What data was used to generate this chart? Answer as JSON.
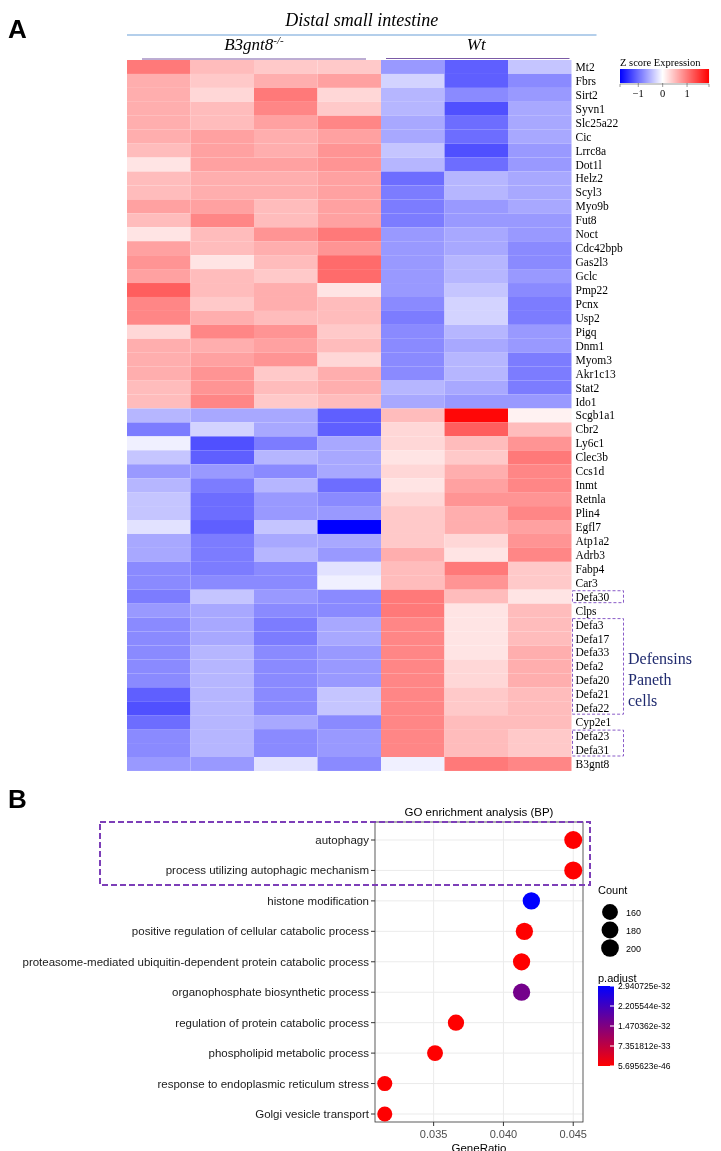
{
  "chart_data": [
    {
      "type": "heatmap",
      "title": "Distal small intestine",
      "clabel": "Z score Expression",
      "annotations": [
        "A",
        "B3gnt8$^{-/-}$",
        "Wt",
        "Defensins Paneth cells"
      ],
      "categories": [
        null,
        null,
        null,
        null,
        null,
        null,
        null
      ],
      "y_categories": [
        "Mt2",
        "Fbrs",
        "Sirt2",
        "Syvn1",
        "Slc25a22",
        "Cic",
        "Lrrc8a",
        "Dot1l",
        "Helz2",
        "Scyl3",
        "Myo9b",
        "Fut8",
        "Noct",
        "Cdc42bpb",
        "Gas2l3",
        "Gclc",
        "Pmp22",
        "Pcnx",
        "Usp2",
        "Pigq",
        "Dnm1",
        "Myom3",
        "Akr1c13",
        "Stat2",
        "Ido1",
        "Scgb1a1",
        "Cbr2",
        "Ly6c1",
        "Clec3b",
        "Ccs1d",
        "Inmt",
        "Retnla",
        "Plin4",
        "Egfl7",
        "Atp1a2",
        "Adrb3",
        "Fabp4",
        "Car3",
        "Defa30",
        "Clps",
        "Defa3",
        "Defa17",
        "Defa33",
        "Defa2",
        "Defa20",
        "Defa21",
        "Defa22",
        "Cyp2e1",
        "Defa23",
        "Defa31",
        "B3gnt8"
      ],
      "cells": [
        [
          1.0,
          0.5,
          0.4,
          0.4,
          -0.7,
          -1.1,
          -0.4
        ],
        [
          0.6,
          0.4,
          0.6,
          0.7,
          -0.3,
          -1.1,
          -0.8
        ],
        [
          0.6,
          0.3,
          1.0,
          0.3,
          -0.5,
          -0.8,
          -0.7
        ],
        [
          0.6,
          0.5,
          0.9,
          0.4,
          -0.5,
          -1.2,
          -0.6
        ],
        [
          0.6,
          0.5,
          0.7,
          0.9,
          -0.6,
          -1.0,
          -0.6
        ],
        [
          0.6,
          0.7,
          0.6,
          0.7,
          -0.6,
          -1.0,
          -0.6
        ],
        [
          0.5,
          0.7,
          0.6,
          0.8,
          -0.4,
          -1.2,
          -0.7
        ],
        [
          0.2,
          0.7,
          0.7,
          0.8,
          -0.5,
          -1.0,
          -0.7
        ],
        [
          0.5,
          0.6,
          0.6,
          0.7,
          -1.0,
          -0.5,
          -0.6
        ],
        [
          0.5,
          0.6,
          0.6,
          0.7,
          -0.9,
          -0.5,
          -0.6
        ],
        [
          0.7,
          0.7,
          0.5,
          0.7,
          -0.9,
          -0.7,
          -0.6
        ],
        [
          0.5,
          0.9,
          0.5,
          0.7,
          -0.9,
          -0.7,
          -0.7
        ],
        [
          0.2,
          0.5,
          0.8,
          1.0,
          -0.7,
          -0.6,
          -0.7
        ],
        [
          0.7,
          0.5,
          0.6,
          0.8,
          -0.7,
          -0.6,
          -0.8
        ],
        [
          0.8,
          0.2,
          0.5,
          1.1,
          -0.7,
          -0.5,
          -0.8
        ],
        [
          0.7,
          0.5,
          0.4,
          1.1,
          -0.7,
          -0.5,
          -0.7
        ],
        [
          1.2,
          0.5,
          0.6,
          0.2,
          -0.7,
          -0.4,
          -0.8
        ],
        [
          0.9,
          0.4,
          0.6,
          0.5,
          -0.8,
          -0.3,
          -0.9
        ],
        [
          0.9,
          0.6,
          0.5,
          0.5,
          -0.9,
          -0.3,
          -0.9
        ],
        [
          0.3,
          0.9,
          0.8,
          0.4,
          -0.8,
          -0.5,
          -0.7
        ],
        [
          0.6,
          0.6,
          0.7,
          0.5,
          -0.8,
          -0.6,
          -0.7
        ],
        [
          0.6,
          0.7,
          0.8,
          0.3,
          -0.8,
          -0.5,
          -0.9
        ],
        [
          0.6,
          0.8,
          0.4,
          0.6,
          -0.8,
          -0.5,
          -0.9
        ],
        [
          0.5,
          0.8,
          0.5,
          0.6,
          -0.5,
          -0.6,
          -0.9
        ],
        [
          0.5,
          0.9,
          0.4,
          0.5,
          -0.6,
          -0.7,
          -0.7
        ],
        [
          -0.5,
          -0.6,
          -0.6,
          -1.1,
          0.5,
          1.85,
          0.1
        ],
        [
          -0.9,
          -0.3,
          -0.6,
          -1.1,
          0.3,
          1.2,
          0.5
        ],
        [
          -0.1,
          -1.2,
          -0.9,
          -0.6,
          0.3,
          0.5,
          0.8
        ],
        [
          -0.4,
          -1.1,
          -0.5,
          -0.6,
          0.2,
          0.4,
          1.0
        ],
        [
          -0.7,
          -0.7,
          -0.8,
          -0.6,
          0.3,
          0.6,
          0.9
        ],
        [
          -0.5,
          -0.9,
          -0.5,
          -1.0,
          0.2,
          0.7,
          0.9
        ],
        [
          -0.4,
          -1.0,
          -0.7,
          -0.8,
          0.3,
          0.8,
          0.8
        ],
        [
          -0.4,
          -1.0,
          -0.7,
          -0.7,
          0.4,
          0.6,
          0.9
        ],
        [
          -0.2,
          -1.1,
          -0.4,
          -1.75,
          0.4,
          0.6,
          0.7
        ],
        [
          -0.6,
          -0.9,
          -0.6,
          -0.6,
          0.4,
          0.3,
          0.8
        ],
        [
          -0.6,
          -0.9,
          -0.5,
          -0.7,
          0.6,
          0.2,
          0.9
        ],
        [
          -0.8,
          -0.9,
          -0.8,
          -0.2,
          0.5,
          1.0,
          0.4
        ],
        [
          -0.8,
          -0.8,
          -0.8,
          -0.1,
          0.5,
          0.8,
          0.4
        ],
        [
          -0.9,
          -0.4,
          -0.7,
          -0.8,
          1.0,
          0.5,
          0.2
        ],
        [
          -0.7,
          -0.6,
          -0.8,
          -0.8,
          1.0,
          0.2,
          0.5
        ],
        [
          -0.8,
          -0.6,
          -0.9,
          -0.6,
          0.9,
          0.2,
          0.5
        ],
        [
          -0.8,
          -0.6,
          -0.9,
          -0.6,
          0.9,
          0.2,
          0.5
        ],
        [
          -0.8,
          -0.5,
          -0.8,
          -0.7,
          0.9,
          0.2,
          0.6
        ],
        [
          -0.8,
          -0.5,
          -0.8,
          -0.7,
          0.9,
          0.3,
          0.6
        ],
        [
          -0.8,
          -0.5,
          -0.8,
          -0.7,
          0.9,
          0.3,
          0.6
        ],
        [
          -1.1,
          -0.5,
          -0.8,
          -0.4,
          0.9,
          0.4,
          0.5
        ],
        [
          -1.2,
          -0.5,
          -0.8,
          -0.4,
          0.9,
          0.4,
          0.5
        ],
        [
          -1.0,
          -0.5,
          -0.6,
          -0.8,
          0.9,
          0.5,
          0.5
        ],
        [
          -0.8,
          -0.5,
          -0.8,
          -0.7,
          0.9,
          0.5,
          0.4
        ],
        [
          -0.8,
          -0.5,
          -0.8,
          -0.7,
          0.9,
          0.5,
          0.4
        ],
        [
          -0.7,
          -0.7,
          -0.2,
          -0.8,
          -0.1,
          1.0,
          0.9
        ]
      ],
      "clim": [
        -1.75,
        1.9
      ],
      "cticks": [
        {
          "value": -1,
          "label": "−1"
        },
        0,
        1
      ]
    },
    {
      "type": "bubble",
      "orientation": "horizontal",
      "title": "GO enrichment analysis (BP)",
      "xlabel": "GeneRatio",
      "legend_title": "Count",
      "clabel": "p.adjust",
      "annotations": [
        "B"
      ],
      "grid": true,
      "categories": [
        "autophagy",
        "process utilizing autophagic mechanism",
        "histone modification",
        "positive regulation of cellular catabolic process",
        "proteasome-mediated ubiquitin-dependent protein catabolic process",
        "organophosphate biosynthetic process",
        "regulation of protein catabolic process",
        "phospholipid metabolic process",
        "response to endoplasmic reticulum stress",
        "Golgi vesicle transport"
      ],
      "values": [
        0.045,
        0.045,
        0.042,
        0.0415,
        0.0413,
        0.0413,
        0.0366,
        0.0351,
        0.0315,
        0.0315
      ],
      "sizes": [
        206,
        206,
        192,
        190,
        189,
        189,
        168,
        161,
        144,
        144
      ],
      "size_legend": [
        160,
        180,
        200
      ],
      "cvalues": [
        5.695623e-46,
        5.695623e-46,
        2.940725e-32,
        1e-40,
        1e-40,
        1.6e-32,
        1e-36,
        1e-36,
        1e-34,
        1e-34
      ],
      "clim": [
        5.695623e-46,
        2.940725e-32
      ],
      "cticks": [
        {
          "value": 5.695623e-46,
          "label": "5.695623e-46"
        },
        {
          "value": 7.351812e-33,
          "label": "7.351812e-33"
        },
        {
          "value": 1.470362e-32,
          "label": "1.470362e-32"
        },
        {
          "value": 2.205544e-32,
          "label": "2.205544e-32"
        },
        {
          "value": 2.940725e-32,
          "label": "2.940725e-32"
        }
      ],
      "xlim": [
        0.0308,
        0.0457
      ],
      "xticks": [
        0.035,
        {
          "value": 0.04,
          "label": "0.040"
        },
        0.045
      ]
    }
  ]
}
